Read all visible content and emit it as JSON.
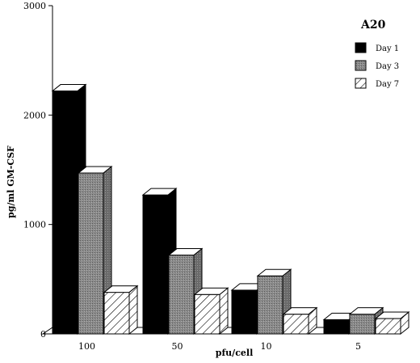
{
  "chart_data": {
    "type": "bar",
    "title": "A20",
    "xlabel": "pfu/cell",
    "ylabel": "pg/ml GM-CSF",
    "categories": [
      "100",
      "50",
      "10",
      "5"
    ],
    "series": [
      {
        "name": "Day 1",
        "values": [
          2220,
          1270,
          400,
          130
        ],
        "color": "#000000",
        "pattern": "solid"
      },
      {
        "name": "Day 3",
        "values": [
          1470,
          720,
          530,
          180
        ],
        "color": "#909090",
        "pattern": "stipple"
      },
      {
        "name": "Day 7",
        "values": [
          380,
          360,
          180,
          140
        ],
        "color": "#ffffff",
        "pattern": "hatch"
      }
    ],
    "ylim": [
      0,
      3000
    ],
    "yticks": [
      "0",
      "1000",
      "2000",
      "3000"
    ],
    "grid": false,
    "legend_position": "top-right"
  }
}
